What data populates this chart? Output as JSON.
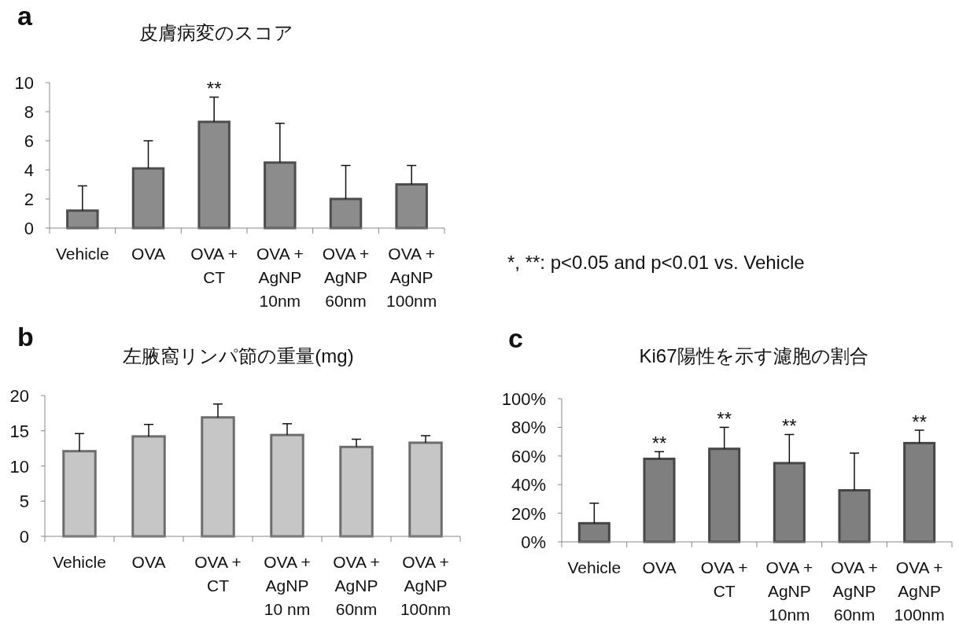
{
  "chart_data": [
    {
      "type": "bar",
      "title": "皮膚病変のスコア",
      "categories": [
        "Vehicle",
        "OVA",
        "OVA +\nCT",
        "OVA +\nAgNP\n10nm",
        "OVA +\nAgNP\n60nm",
        "OVA +\nAgNP\n100nm"
      ],
      "values": [
        1.2,
        4.1,
        7.3,
        4.5,
        2.0,
        3.0
      ],
      "errors": [
        [
          1.2,
          2.9
        ],
        [
          4.1,
          6.0
        ],
        [
          7.3,
          9.0
        ],
        [
          4.5,
          7.2
        ],
        [
          2.0,
          4.3
        ],
        [
          3.0,
          4.3
        ]
      ],
      "color": "#8c8c8c",
      "ylim": [
        0,
        10
      ],
      "yticks": [
        0,
        2,
        4,
        6,
        8,
        10
      ],
      "annotations": [
        "a",
        {
          "text": "**",
          "x": "OVA +\nCT",
          "y": 7.3
        },
        "*, **: p<0.05 and p<0.01 vs. Vehicle"
      ]
    },
    {
      "type": "bar",
      "title": "左腋窩リンパ節の重量(mg)",
      "categories": [
        "Vehicle",
        "OVA",
        "OVA +\nCT",
        "OVA +\nAgNP\n10 nm",
        "OVA +\nAgNP\n60nm",
        "OVA +\nAgNP\n100nm"
      ],
      "values": [
        12.1,
        14.2,
        16.9,
        14.4,
        12.7,
        13.3
      ],
      "errors": [
        [
          12.1,
          14.6
        ],
        [
          14.2,
          15.9
        ],
        [
          16.9,
          18.8
        ],
        [
          14.4,
          16.0
        ],
        [
          12.7,
          13.8
        ],
        [
          13.3,
          14.3
        ]
      ],
      "color": "#c6c6c6",
      "ylim": [
        0,
        20
      ],
      "yticks": [
        0,
        5,
        10,
        15,
        20
      ],
      "annotations": [
        "b"
      ]
    },
    {
      "type": "bar",
      "title": "Ki67陽性を示す濾胞の割合",
      "categories": [
        "Vehicle",
        "OVA",
        "OVA +\nCT",
        "OVA +\nAgNP\n10nm",
        "OVA +\nAgNP\n60nm",
        "OVA +\nAgNP\n100nm"
      ],
      "values": [
        13,
        58,
        65,
        55,
        36,
        69
      ],
      "errors": [
        [
          13,
          27
        ],
        [
          58,
          63
        ],
        [
          65,
          80
        ],
        [
          55,
          75
        ],
        [
          36,
          62
        ],
        [
          69,
          78
        ]
      ],
      "color": "#7f7f7f",
      "ylim": [
        0,
        100
      ],
      "yticks": [
        {
          "value": 0,
          "label": "0%"
        },
        {
          "value": 20,
          "label": "20%"
        },
        {
          "value": 40,
          "label": "40%"
        },
        {
          "value": 60,
          "label": "60%"
        },
        {
          "value": 80,
          "label": "80%"
        },
        {
          "value": 100,
          "label": "100%"
        }
      ],
      "annotations": [
        "c",
        {
          "text": "**",
          "x": "OVA",
          "y": 58
        },
        {
          "text": "**",
          "x": "OVA +\nCT",
          "y": 65
        },
        {
          "text": "**",
          "x": "OVA +\nAgNP\n10nm",
          "y": 55
        },
        {
          "text": "**",
          "x": "OVA +\nAgNP\n100nm",
          "y": 69
        }
      ]
    }
  ]
}
